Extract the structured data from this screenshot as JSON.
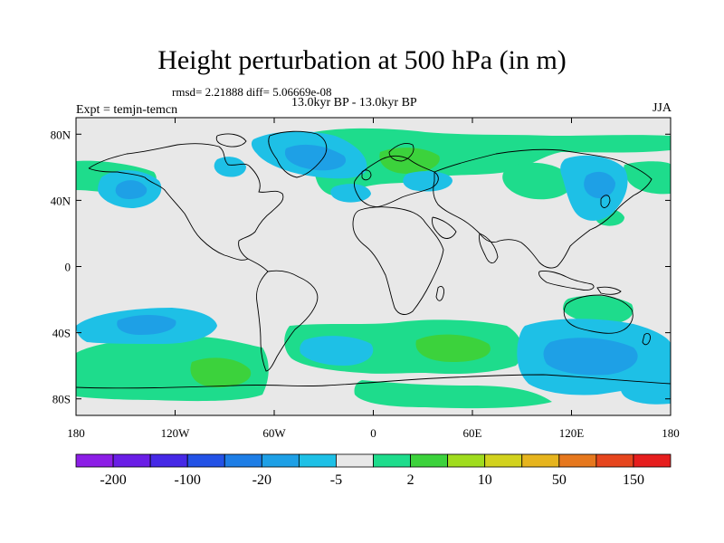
{
  "title": "Height perturbation at 500 hPa (in m)",
  "stats_line": "rmsd= 2.21888 diff= 5.06669e-08",
  "period": "13.0kyr BP - 13.0kyr BP",
  "experiment": "Expt = temjn-temcn",
  "season": "JJA",
  "map": {
    "lat_labels": [
      "80N",
      "40N",
      "0",
      "40S",
      "80S"
    ],
    "lat_values": [
      80,
      40,
      0,
      -40,
      -80
    ],
    "lon_labels": [
      "180",
      "120W",
      "60W",
      "0",
      "60E",
      "120E",
      "180"
    ],
    "lon_values": [
      -180,
      -120,
      -60,
      0,
      60,
      120,
      180
    ],
    "lat_range": [
      -90,
      90
    ],
    "lon_range": [
      -180,
      180
    ],
    "background_color": "#e8e8e8",
    "coastline_color": "#000000"
  },
  "colorbar": {
    "colors": [
      "#8c1ee6",
      "#6a1ee6",
      "#4629e6",
      "#2352e6",
      "#1e7ee6",
      "#1ea0e6",
      "#1ec0e6",
      "#e8e8e8",
      "#1edc8c",
      "#3cd23c",
      "#a0dc1e",
      "#d2d21e",
      "#e6b41e",
      "#e6781e",
      "#e6461e",
      "#e61e1e"
    ],
    "labels": [
      "-200",
      "-100",
      "-20",
      "-5",
      "2",
      "10",
      "50",
      "150"
    ]
  }
}
